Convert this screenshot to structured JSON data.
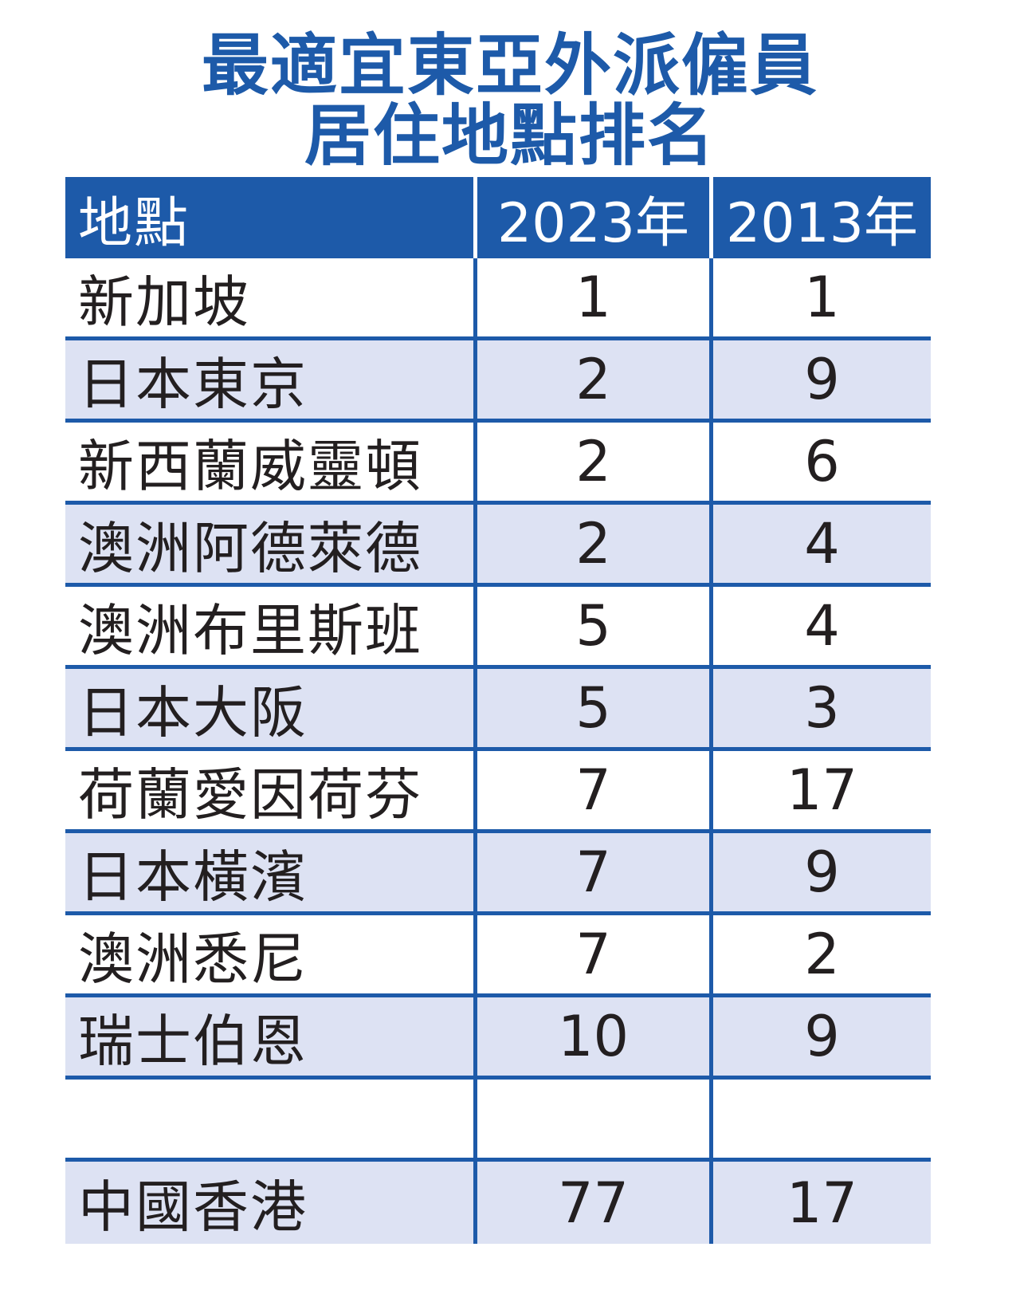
{
  "title": {
    "line1": "最適宜東亞外派僱員",
    "line2": "居住地點排名"
  },
  "colors": {
    "header_bg": "#1d5aa9",
    "title": "#1d5aa9",
    "shaded_row": "#dde2f3",
    "text": "#231f20"
  },
  "chart_data": {
    "type": "table",
    "title": "最適宜東亞外派僱員居住地點排名",
    "columns": [
      "地點",
      "2023年",
      "2013年"
    ],
    "rows": [
      [
        "新加坡",
        "1",
        "1"
      ],
      [
        "日本東京",
        "2",
        "9"
      ],
      [
        "新西蘭威靈頓",
        "2",
        "6"
      ],
      [
        "澳洲阿德萊德",
        "2",
        "4"
      ],
      [
        "澳洲布里斯班",
        "5",
        "4"
      ],
      [
        "日本大阪",
        "5",
        "3"
      ],
      [
        "荷蘭愛因荷芬",
        "7",
        "17"
      ],
      [
        "日本橫濱",
        "7",
        "9"
      ],
      [
        "澳洲悉尼",
        "7",
        "2"
      ],
      [
        "瑞士伯恩",
        "10",
        "9"
      ],
      [
        "",
        "",
        ""
      ],
      [
        "中國香港",
        "77",
        "17"
      ]
    ]
  }
}
